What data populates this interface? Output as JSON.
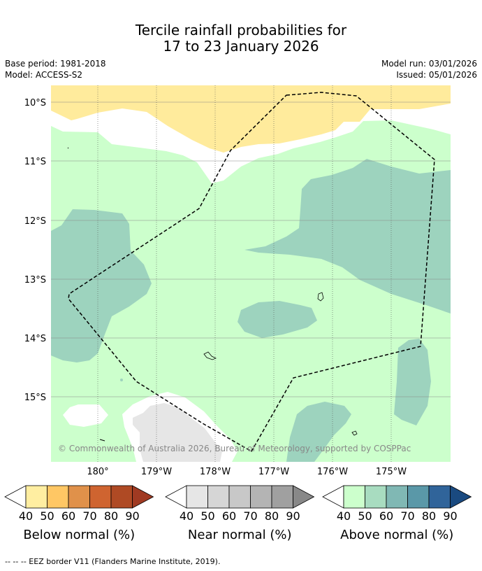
{
  "title": {
    "line1": "Tercile rainfall probabilities for",
    "line2": "17 to 23 January 2026"
  },
  "info": {
    "base_period": "Base period: 1981-2018",
    "model": "Model: ACCESS-S2",
    "model_run": "Model run: 03/01/2026",
    "issued": "Issued: 05/01/2026"
  },
  "map": {
    "lat_labels": [
      "10°S",
      "11°S",
      "12°S",
      "13°S",
      "14°S",
      "15°S"
    ],
    "lon_labels": [
      "180°",
      "179°W",
      "178°W",
      "177°W",
      "176°W",
      "175°W"
    ],
    "copyright": "© Commonwealth of Australia 2026, Bureau of Meteorology, supported by COSPPac",
    "colors": {
      "above_50": "#ccffcc",
      "above_60": "#9dd3be",
      "below_40": "#ffeb9c",
      "near_40": "#e6e6e6",
      "ocean_white": "#ffffff"
    }
  },
  "legends": [
    {
      "name": "below",
      "title": "Below normal (%)",
      "ticks": [
        "40",
        "50",
        "60",
        "70",
        "80",
        "90"
      ],
      "colors": [
        "#ffffff",
        "#ffeea1",
        "#ffc764",
        "#e0914a",
        "#cf6430",
        "#af4a24",
        "#a03a22"
      ]
    },
    {
      "name": "near",
      "title": "Near normal (%)",
      "ticks": [
        "40",
        "50",
        "60",
        "70",
        "80",
        "90"
      ],
      "colors": [
        "#ffffff",
        "#e6e6e6",
        "#d6d6d6",
        "#c8c8c8",
        "#b4b4b4",
        "#a0a0a0",
        "#888888"
      ]
    },
    {
      "name": "above",
      "title": "Above normal (%)",
      "ticks": [
        "40",
        "50",
        "60",
        "70",
        "80",
        "90"
      ],
      "colors": [
        "#ffffff",
        "#ccffcc",
        "#a8dcc0",
        "#80b8b4",
        "#5a98a8",
        "#30649a",
        "#1a4a80"
      ]
    }
  ],
  "footer": "--  --  -- EEZ border V11 (Flanders Marine Institute, 2019)."
}
